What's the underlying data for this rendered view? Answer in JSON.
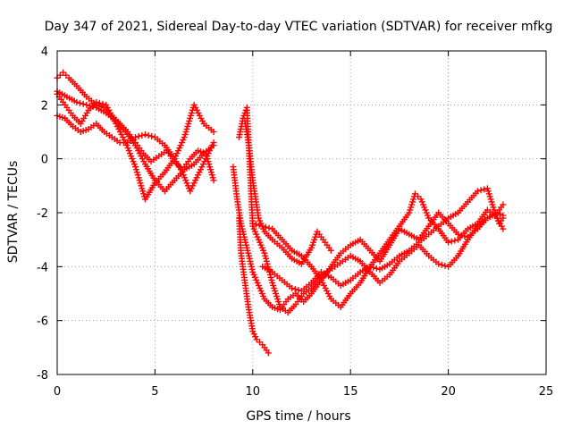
{
  "chart_data": {
    "type": "scatter",
    "title": "Day 347 of 2021, Sidereal Day-to-day VTEC variation (SDTVAR) for receiver mfkg",
    "xlabel": "GPS time / hours",
    "ylabel": "SDTVAR / TECUs",
    "xlim": [
      0,
      25
    ],
    "ylim": [
      -8,
      4
    ],
    "xticks": [
      0,
      5,
      10,
      15,
      20,
      25
    ],
    "yticks": [
      -8,
      -6,
      -4,
      -2,
      0,
      2,
      4
    ],
    "grid": true,
    "marker": "plus",
    "color": "#ff0000",
    "series": [
      {
        "x": [
          0.0,
          0.3,
          0.6,
          1.0,
          1.5,
          2.0,
          2.4,
          2.8,
          3.2,
          3.6,
          4.0,
          4.4,
          4.8,
          5.2,
          5.6,
          6.0,
          6.4,
          6.8,
          7.2,
          7.6,
          8.0
        ],
        "y": [
          3.0,
          3.2,
          3.0,
          2.7,
          2.3,
          2.0,
          1.9,
          1.6,
          1.3,
          1.0,
          0.6,
          0.2,
          -0.1,
          0.1,
          0.3,
          -0.1,
          -0.4,
          0.0,
          0.3,
          0.2,
          -0.8
        ]
      },
      {
        "x": [
          0.0,
          0.4,
          0.8,
          1.2,
          1.6,
          2.0,
          2.5,
          3.0,
          3.5,
          4.0,
          4.5,
          5.0,
          5.5,
          6.0,
          6.5,
          7.0,
          7.5,
          8.0
        ],
        "y": [
          2.4,
          2.0,
          1.6,
          1.3,
          1.8,
          2.1,
          2.0,
          1.3,
          0.6,
          -0.3,
          -1.5,
          -0.9,
          -0.5,
          0.0,
          0.8,
          2.0,
          1.3,
          1.0
        ]
      },
      {
        "x": [
          0.0,
          0.4,
          0.8,
          1.2,
          1.6,
          2.0,
          2.4,
          2.8,
          3.2,
          3.6,
          4.0,
          4.5,
          5.0,
          5.5,
          6.0,
          6.4,
          6.8,
          7.2,
          7.6,
          8.0
        ],
        "y": [
          1.6,
          1.5,
          1.2,
          1.0,
          1.1,
          1.3,
          1.0,
          0.8,
          0.6,
          0.6,
          0.8,
          0.9,
          0.8,
          0.5,
          0.0,
          -0.5,
          -1.2,
          -0.6,
          0.0,
          0.6
        ]
      },
      {
        "x": [
          0.0,
          0.5,
          1.0,
          1.5,
          2.0,
          2.5,
          3.0,
          3.5,
          4.0,
          4.5,
          5.0,
          5.5,
          6.0,
          6.5,
          7.0,
          7.5,
          8.0
        ],
        "y": [
          2.5,
          2.3,
          2.1,
          2.0,
          1.9,
          1.7,
          1.4,
          1.0,
          0.5,
          -0.2,
          -0.8,
          -1.2,
          -0.8,
          -0.4,
          -0.2,
          0.2,
          0.5
        ]
      },
      {
        "x": [
          9.3,
          9.4,
          9.6,
          9.8,
          10.0,
          10.2,
          10.5,
          10.8
        ],
        "y": [
          -2.2,
          -3.5,
          -4.6,
          -5.6,
          -6.4,
          -6.7,
          -6.9,
          -7.2
        ]
      },
      {
        "x": [
          9.3,
          9.5,
          9.7,
          10.0,
          10.3,
          10.6,
          11.0,
          11.4,
          11.8,
          12.2,
          12.6,
          13.0,
          13.4,
          13.8,
          14.2,
          14.6,
          15.0,
          15.5,
          16.0,
          16.5,
          17.0,
          17.5,
          18.0,
          18.5,
          19.0,
          19.5,
          20.0,
          20.5,
          21.0,
          21.5,
          22.0,
          22.5,
          22.8
        ],
        "y": [
          0.8,
          1.5,
          1.9,
          -2.5,
          -3.0,
          -3.5,
          -4.6,
          -5.5,
          -5.7,
          -5.4,
          -5.0,
          -4.8,
          -4.5,
          -4.2,
          -4.0,
          -3.8,
          -3.6,
          -3.8,
          -4.2,
          -4.6,
          -4.3,
          -3.8,
          -3.5,
          -3.2,
          -3.6,
          -3.9,
          -4.0,
          -3.6,
          -3.0,
          -2.5,
          -2.2,
          -2.0,
          -1.7
        ]
      },
      {
        "x": [
          9.0,
          9.2,
          9.4,
          9.7,
          10.0,
          10.3,
          10.6,
          11.0,
          11.4,
          11.8,
          12.2,
          12.6,
          13.0,
          13.5,
          14.0,
          14.5,
          15.0,
          15.5,
          16.0,
          16.5,
          17.0,
          17.5,
          18.0,
          18.5,
          19.0,
          19.5,
          20.0,
          20.5,
          21.0,
          21.5,
          22.0,
          22.5,
          22.8
        ],
        "y": [
          -0.3,
          -1.5,
          -2.4,
          -3.3,
          -4.2,
          -4.7,
          -5.2,
          -5.5,
          -5.6,
          -5.2,
          -5.0,
          -5.3,
          -5.0,
          -4.5,
          -4.0,
          -3.5,
          -3.2,
          -3.0,
          -3.4,
          -3.8,
          -3.2,
          -2.6,
          -2.8,
          -3.0,
          -2.5,
          -2.0,
          -2.4,
          -2.8,
          -2.9,
          -2.6,
          -2.2,
          -2.0,
          -2.1
        ]
      },
      {
        "x": [
          10.0,
          10.5,
          11.0,
          11.5,
          12.0,
          12.5,
          13.0,
          13.5,
          14.0,
          14.5,
          15.0,
          15.5,
          16.0,
          16.5,
          17.0,
          17.5,
          18.0,
          18.3,
          18.6,
          19.0,
          19.5,
          20.0,
          20.5,
          21.0,
          21.5,
          22.0,
          22.5,
          22.8
        ],
        "y": [
          -2.4,
          -2.5,
          -2.6,
          -3.0,
          -3.4,
          -3.6,
          -4.0,
          -4.5,
          -5.2,
          -5.5,
          -5.0,
          -4.6,
          -4.0,
          -3.5,
          -3.0,
          -2.5,
          -2.0,
          -1.3,
          -1.5,
          -2.2,
          -2.6,
          -3.1,
          -3.0,
          -2.6,
          -2.4,
          -1.9,
          -2.2,
          -2.6
        ]
      },
      {
        "x": [
          9.6,
          9.8,
          10.0,
          10.3,
          10.6,
          11.0,
          11.5,
          12.0,
          12.5,
          13.0,
          13.3,
          13.6,
          14.0
        ],
        "y": [
          1.4,
          0.5,
          -0.8,
          -2.2,
          -2.7,
          -3.0,
          -3.3,
          -3.7,
          -3.9,
          -3.3,
          -2.7,
          -3.0,
          -3.4
        ]
      },
      {
        "x": [
          10.5,
          11.0,
          11.5,
          12.0,
          12.5,
          13.0,
          13.5,
          14.0,
          14.5,
          15.0,
          15.5,
          16.0,
          16.5,
          17.0,
          17.5,
          18.0,
          18.5,
          19.0,
          19.5,
          20.0,
          20.5,
          21.0,
          21.5,
          22.0,
          22.3,
          22.6,
          22.8
        ],
        "y": [
          -4.0,
          -4.2,
          -4.5,
          -4.8,
          -4.9,
          -4.6,
          -4.2,
          -4.4,
          -4.7,
          -4.5,
          -4.2,
          -4.0,
          -4.1,
          -3.9,
          -3.6,
          -3.4,
          -3.1,
          -2.8,
          -2.5,
          -2.2,
          -2.0,
          -1.6,
          -1.2,
          -1.1,
          -1.8,
          -2.4,
          -2.2
        ]
      }
    ]
  }
}
